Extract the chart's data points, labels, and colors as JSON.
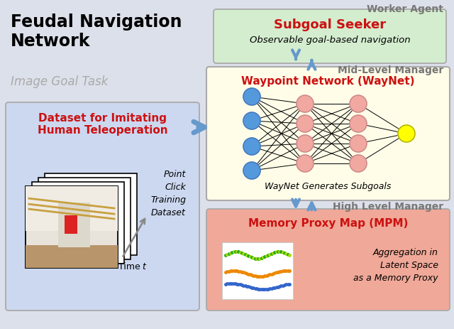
{
  "title": "Feudal Navigation\nNetwork",
  "subtitle": "Image Goal Task",
  "bg_color": "#dce0ea",
  "worker_label": "Worker Agent",
  "midlevel_label": "Mid-Level Manager",
  "highlevel_label": "High Level Manager",
  "subgoal_box_color": "#d4edcf",
  "subgoal_box_edge": "#aaaaaa",
  "subgoal_title": "Subgoal Seeker",
  "subgoal_text": "Observable goal-based navigation",
  "waynet_box_color": "#fffde8",
  "waynet_box_edge": "#aaaaaa",
  "waynet_title": "Waypoint Network (WayNet)",
  "waynet_text": "WayNet Generates Subgoals",
  "mpm_box_color": "#f0a898",
  "mpm_box_edge": "#aaaaaa",
  "mpm_title": "Memory Proxy Map (MPM)",
  "mpm_text": "Aggregation in\nLatent Space\nas a Memory Proxy",
  "dataset_box_color": "#ccd8f0",
  "dataset_box_edge": "#aaaaaa",
  "dataset_title": "Dataset for Imitating\nHuman Teleoperation",
  "dataset_labels": "Point\nClick\nTraining\nDataset",
  "time_label": "Time ",
  "red_color": "#cc1111",
  "gray_label_color": "#777777",
  "node_pink": "#f0a8a0",
  "node_blue": "#5599dd",
  "node_yellow": "#ffff00",
  "arrow_blue": "#6699cc",
  "arrow_lw": 3.0,
  "arrow_scale": 18
}
